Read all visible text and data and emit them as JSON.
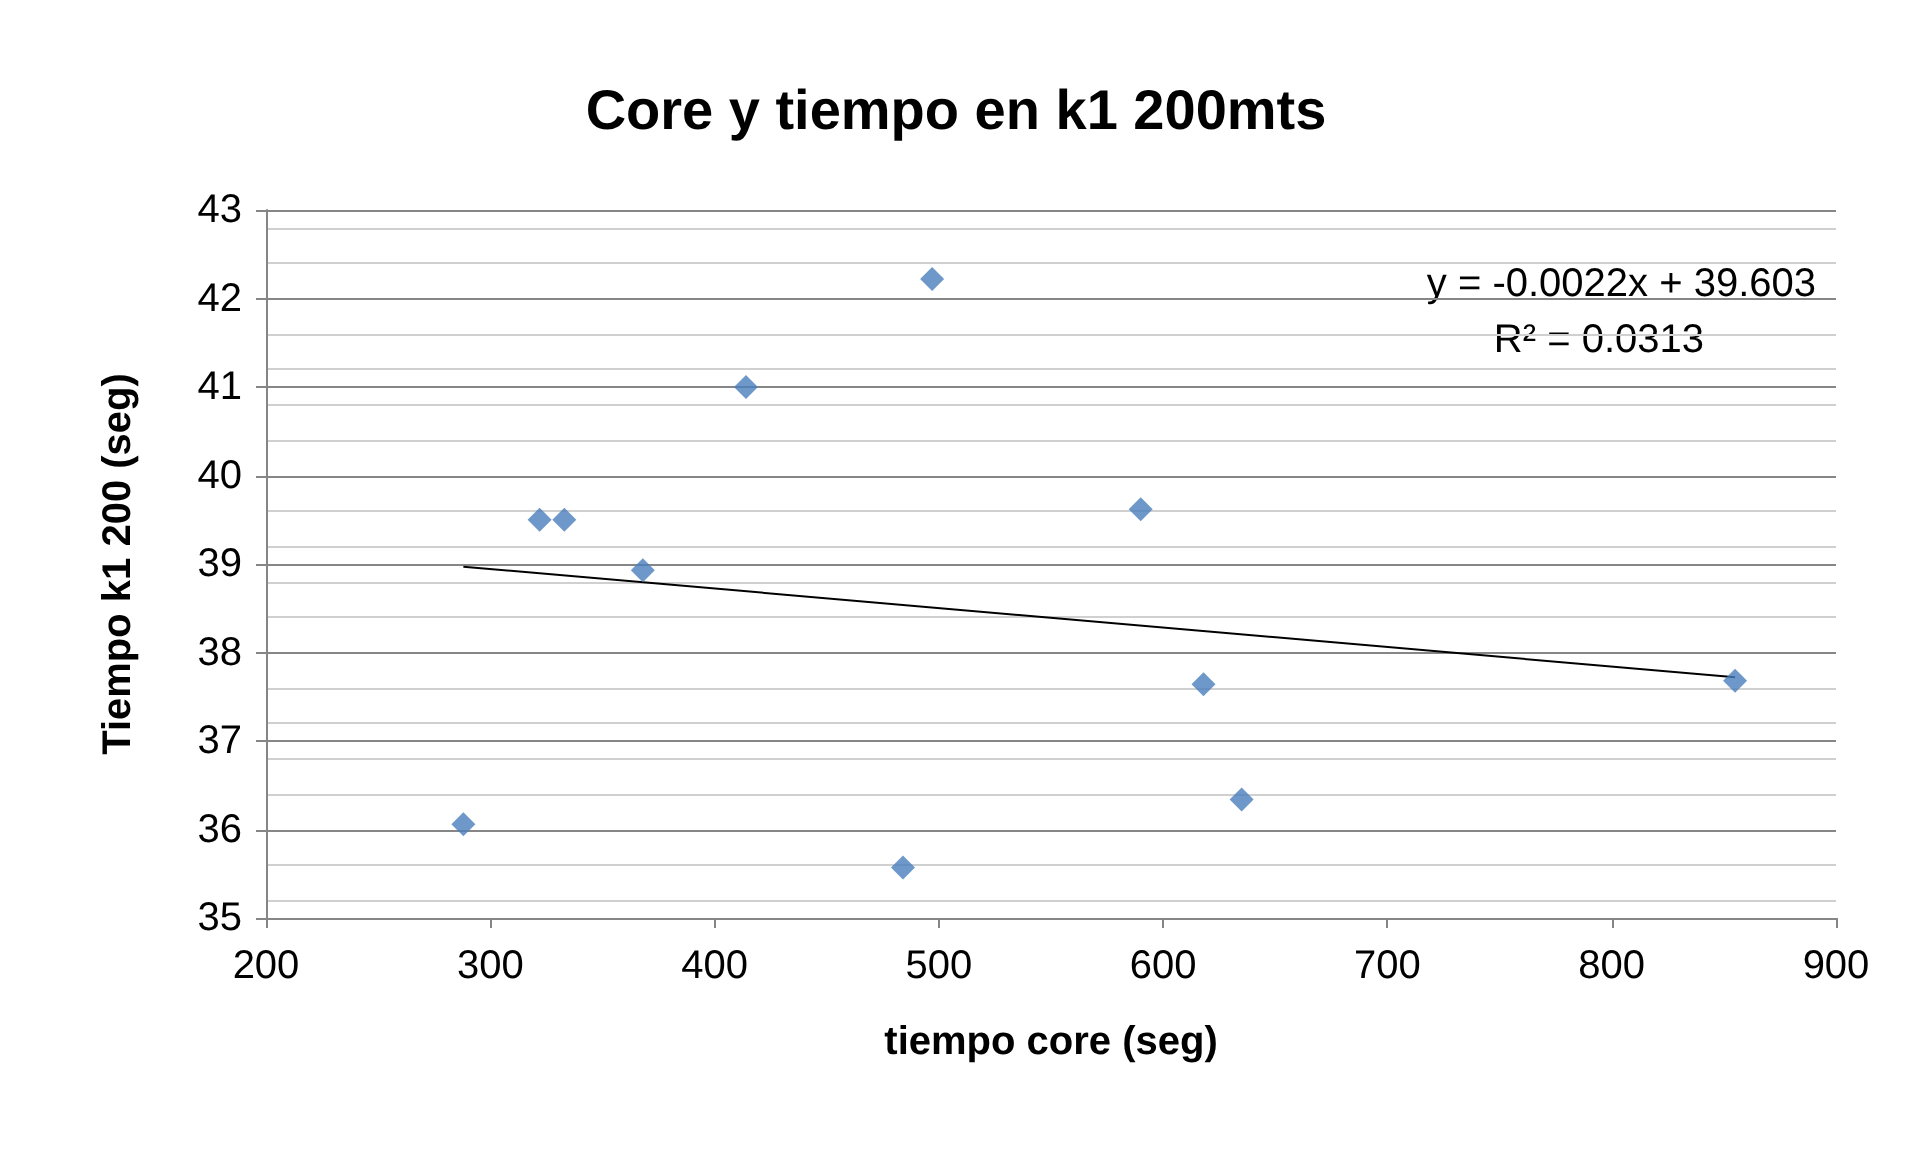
{
  "chart_data": {
    "type": "scatter",
    "title": "Core y tiempo en k1 200mts",
    "xlabel": "tiempo core (seg)",
    "ylabel": "Tiempo k1 200 (seg)",
    "xlim": [
      200,
      900
    ],
    "xticks": [
      200,
      300,
      400,
      500,
      600,
      700,
      800,
      900
    ],
    "ylim": [
      35,
      43
    ],
    "yticks": [
      35,
      36,
      37,
      38,
      39,
      40,
      41,
      42,
      43
    ],
    "grid": "y",
    "marker": "diamond",
    "series": [
      {
        "color": "#4a7ebb",
        "x": [
          288,
          322,
          333,
          368,
          414,
          497,
          484,
          590,
          618,
          635,
          855
        ],
        "values": [
          36.06,
          39.5,
          39.5,
          38.93,
          41.0,
          42.22,
          35.57,
          39.62,
          37.64,
          36.34,
          37.68
        ]
      },
      {
        "type": "line",
        "color": "#000000",
        "marker": "none",
        "line_style": "solid",
        "x": [
          288,
          855
        ],
        "values": [
          38.97,
          37.72
        ]
      }
    ],
    "annotations": [
      "y = -0.0022x + 39.603",
      "R² = 0.0313"
    ]
  }
}
